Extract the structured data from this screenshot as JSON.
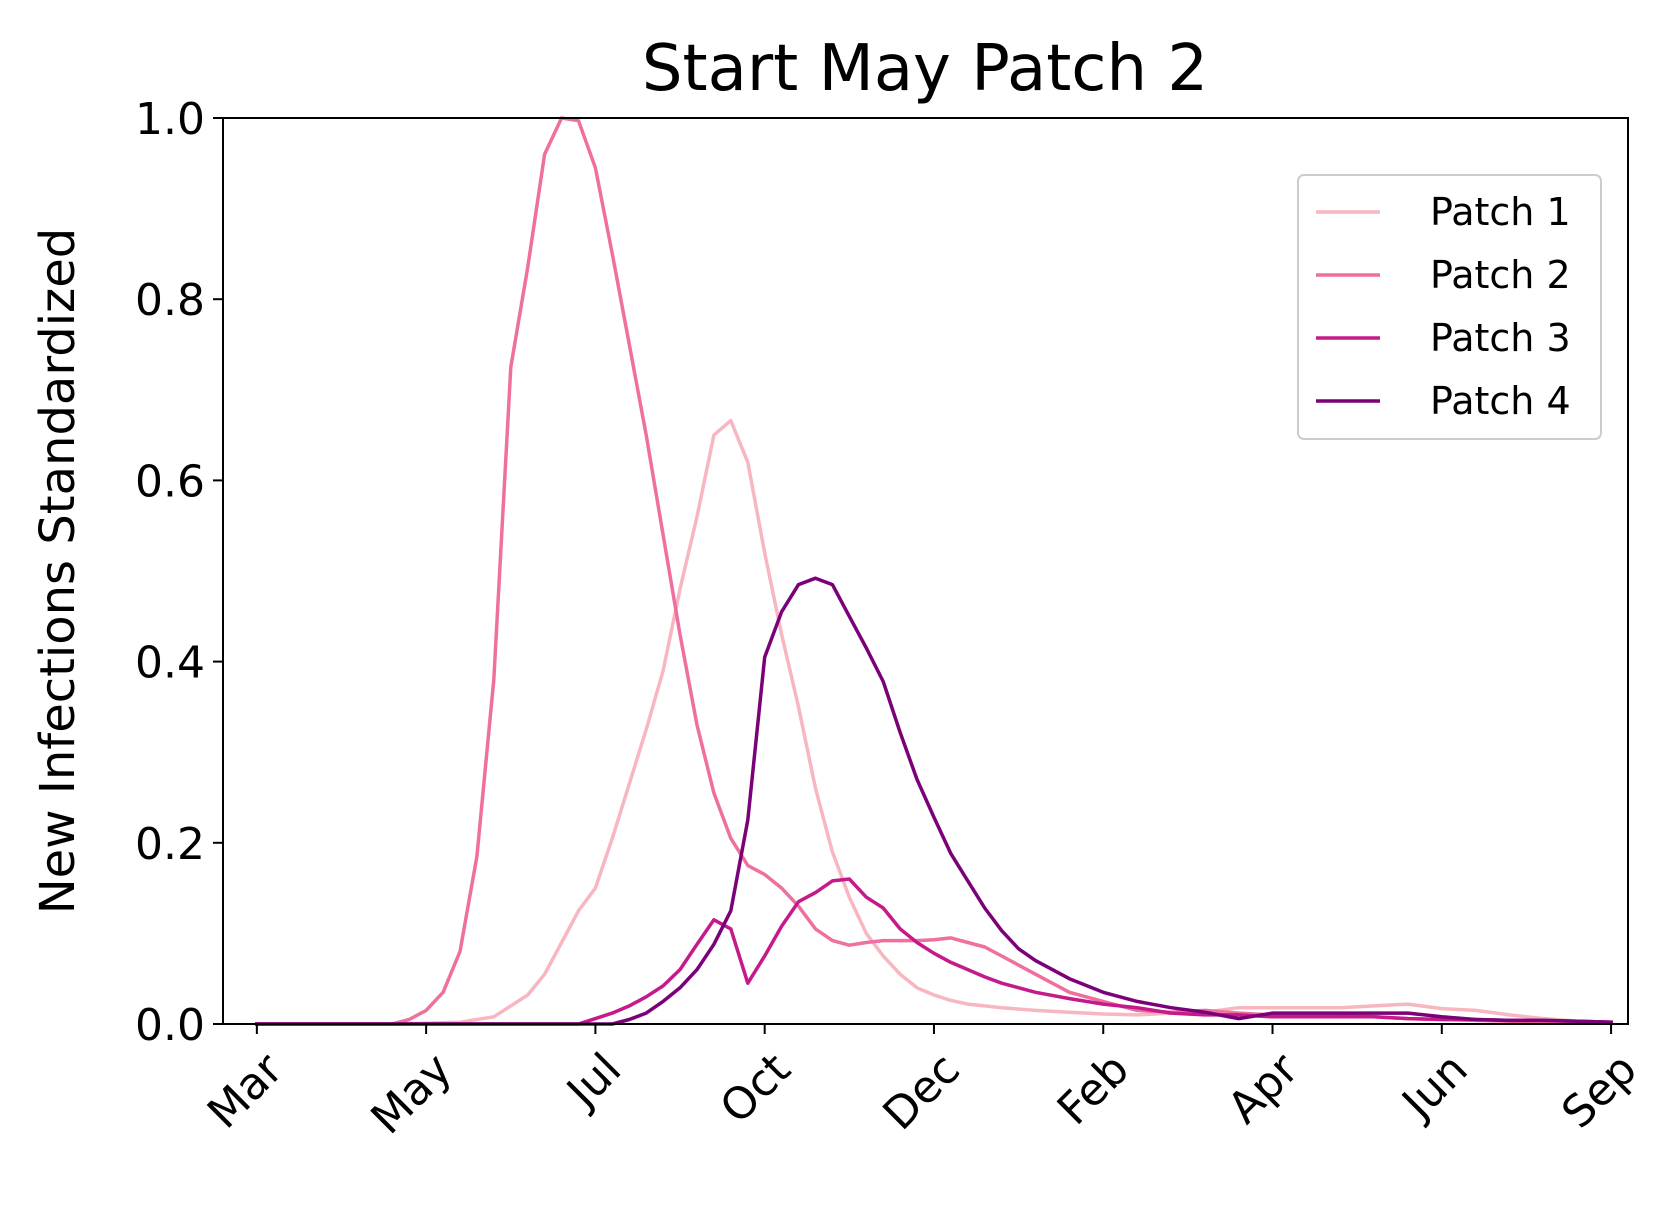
{
  "chart_data": {
    "type": "line",
    "title": "Start May Patch 2",
    "xlabel": "",
    "ylabel": "New Infections Standardized",
    "xlim": [
      -2,
      81
    ],
    "ylim": [
      0,
      1.0
    ],
    "yticks": [
      0.0,
      0.2,
      0.4,
      0.6,
      0.8,
      1.0
    ],
    "ytick_labels": [
      "0.0",
      "0.2",
      "0.4",
      "0.6",
      "0.8",
      "1.0"
    ],
    "xticks": [
      0,
      10,
      20,
      30,
      40,
      50,
      60,
      70,
      80
    ],
    "xtick_labels": [
      "Mar",
      "May",
      "Jul",
      "Oct",
      "Dec",
      "Feb",
      "Apr",
      "Jun",
      "Sep"
    ],
    "grid": false,
    "legend_position": "top-right",
    "series": [
      {
        "name": "Patch 1",
        "color": "#f7b6c0",
        "x": [
          0,
          8,
          12,
          14,
          16,
          17,
          18,
          19,
          20,
          21,
          22,
          23,
          24,
          25,
          26,
          27,
          28,
          29,
          30,
          31,
          32,
          33,
          34,
          35,
          36,
          37,
          38,
          39,
          40,
          41,
          42,
          43,
          44,
          46,
          48,
          50,
          52,
          54,
          56,
          58,
          60,
          62,
          64,
          66,
          68,
          70,
          72,
          74,
          76,
          78,
          80
        ],
        "y": [
          0.0,
          0.0,
          0.002,
          0.008,
          0.032,
          0.055,
          0.09,
          0.125,
          0.15,
          0.205,
          0.265,
          0.325,
          0.39,
          0.48,
          0.56,
          0.65,
          0.666,
          0.62,
          0.52,
          0.43,
          0.35,
          0.26,
          0.19,
          0.14,
          0.1,
          0.075,
          0.055,
          0.04,
          0.032,
          0.026,
          0.022,
          0.02,
          0.018,
          0.015,
          0.013,
          0.011,
          0.01,
          0.012,
          0.013,
          0.018,
          0.018,
          0.018,
          0.018,
          0.02,
          0.022,
          0.017,
          0.015,
          0.01,
          0.006,
          0.003,
          0.002
        ]
      },
      {
        "name": "Patch 2",
        "color": "#ef6f9f",
        "x": [
          0,
          8,
          9,
          10,
          11,
          12,
          13,
          14,
          15,
          16,
          17,
          18,
          19,
          20,
          21,
          22,
          23,
          24,
          25,
          26,
          27,
          28,
          29,
          30,
          31,
          32,
          33,
          34,
          35,
          36,
          37,
          38,
          39,
          40,
          41,
          42,
          43,
          44,
          46,
          48,
          50,
          52,
          54,
          56,
          58,
          60,
          62,
          64,
          66,
          68,
          70,
          72,
          74,
          76,
          78,
          80
        ],
        "y": [
          0.0,
          0.0,
          0.005,
          0.015,
          0.035,
          0.08,
          0.185,
          0.38,
          0.725,
          0.835,
          0.96,
          1.0,
          0.997,
          0.945,
          0.85,
          0.75,
          0.65,
          0.54,
          0.43,
          0.33,
          0.255,
          0.205,
          0.175,
          0.165,
          0.15,
          0.13,
          0.105,
          0.092,
          0.087,
          0.09,
          0.092,
          0.092,
          0.092,
          0.093,
          0.095,
          0.09,
          0.085,
          0.075,
          0.055,
          0.035,
          0.025,
          0.015,
          0.013,
          0.015,
          0.012,
          0.01,
          0.01,
          0.01,
          0.008,
          0.006,
          0.005,
          0.004,
          0.003,
          0.003,
          0.003,
          0.002
        ]
      },
      {
        "name": "Patch 3",
        "color": "#c51b8a",
        "x": [
          0,
          19,
          20,
          21,
          22,
          23,
          24,
          25,
          26,
          27,
          28,
          29,
          30,
          31,
          32,
          33,
          34,
          35,
          36,
          37,
          38,
          39,
          40,
          41,
          42,
          43,
          44,
          46,
          48,
          50,
          52,
          54,
          56,
          58,
          60,
          62,
          64,
          66,
          68,
          70,
          72,
          74,
          76,
          78,
          80
        ],
        "y": [
          0.0,
          0.0,
          0.006,
          0.012,
          0.02,
          0.03,
          0.042,
          0.06,
          0.088,
          0.115,
          0.105,
          0.045,
          0.075,
          0.108,
          0.135,
          0.145,
          0.158,
          0.16,
          0.14,
          0.128,
          0.105,
          0.09,
          0.078,
          0.068,
          0.06,
          0.052,
          0.045,
          0.035,
          0.028,
          0.022,
          0.018,
          0.012,
          0.01,
          0.01,
          0.008,
          0.008,
          0.008,
          0.008,
          0.006,
          0.005,
          0.005,
          0.004,
          0.004,
          0.003,
          0.002
        ]
      },
      {
        "name": "Patch 4",
        "color": "#7a0177",
        "x": [
          0,
          21,
          22,
          23,
          24,
          25,
          26,
          27,
          28,
          29,
          30,
          31,
          32,
          33,
          34,
          35,
          36,
          37,
          38,
          39,
          40,
          41,
          42,
          43,
          44,
          45,
          46,
          48,
          50,
          52,
          54,
          56,
          58,
          60,
          62,
          64,
          66,
          68,
          70,
          72,
          74,
          76,
          78,
          80
        ],
        "y": [
          0.0,
          0.0,
          0.005,
          0.012,
          0.025,
          0.04,
          0.06,
          0.088,
          0.125,
          0.225,
          0.405,
          0.455,
          0.485,
          0.492,
          0.485,
          0.45,
          0.415,
          0.378,
          0.322,
          0.27,
          0.228,
          0.188,
          0.158,
          0.128,
          0.103,
          0.083,
          0.07,
          0.05,
          0.035,
          0.025,
          0.018,
          0.013,
          0.006,
          0.012,
          0.012,
          0.012,
          0.012,
          0.012,
          0.008,
          0.005,
          0.004,
          0.004,
          0.003,
          0.002
        ]
      }
    ]
  }
}
